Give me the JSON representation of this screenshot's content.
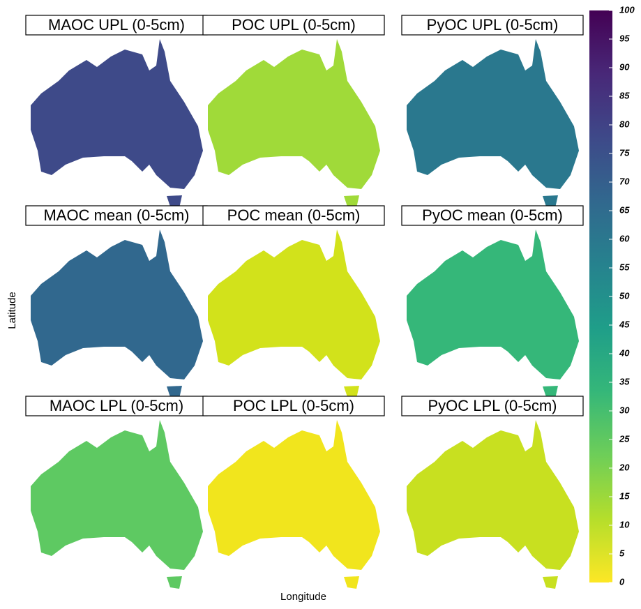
{
  "panels": [
    {
      "title": "MAOC UPL (0-5cm)",
      "color": "#3e4a89"
    },
    {
      "title": "POC UPL (0-5cm)",
      "color": "#a0da39"
    },
    {
      "title": "PyOC UPL (0-5cm)",
      "color": "#2a788e"
    },
    {
      "title": "MAOC mean (0-5cm)",
      "color": "#31688e"
    },
    {
      "title": "POC mean (0-5cm)",
      "color": "#d2e21b"
    },
    {
      "title": "PyOC mean (0-5cm)",
      "color": "#35b779"
    },
    {
      "title": "MAOC LPL (0-5cm)",
      "color": "#5ec962"
    },
    {
      "title": "POC LPL (0-5cm)",
      "color": "#f1e51d"
    },
    {
      "title": "PyOC LPL (0-5cm)",
      "color": "#c8e020"
    }
  ],
  "x_label": "Longitude",
  "y_label": "Latitude",
  "colorbar": {
    "range": [
      0,
      100
    ],
    "ticks": [
      0,
      5,
      10,
      15,
      20,
      25,
      30,
      35,
      40,
      45,
      50,
      55,
      60,
      65,
      70,
      75,
      80,
      85,
      90,
      95,
      100
    ],
    "colors": [
      "#fde725",
      "#b5de2b",
      "#6ece58",
      "#35b779",
      "#1f9e89",
      "#26828e",
      "#31688e",
      "#3e4989",
      "#482878",
      "#440154"
    ]
  }
}
